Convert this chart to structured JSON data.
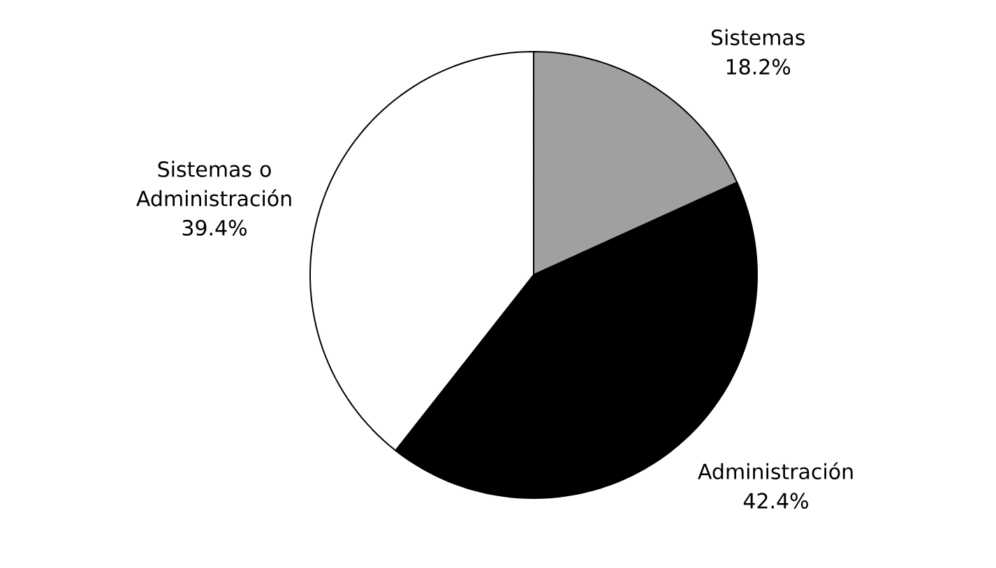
{
  "chart_data": {
    "type": "pie",
    "categories": [
      "Sistemas",
      "Administración",
      "Sistemas o Administración"
    ],
    "values": [
      18.2,
      42.4,
      39.4
    ],
    "value_labels": [
      "18.2%",
      "42.4%",
      "39.4%"
    ],
    "colors": [
      "#a0a0a0",
      "#000000",
      "#ffffff"
    ]
  }
}
